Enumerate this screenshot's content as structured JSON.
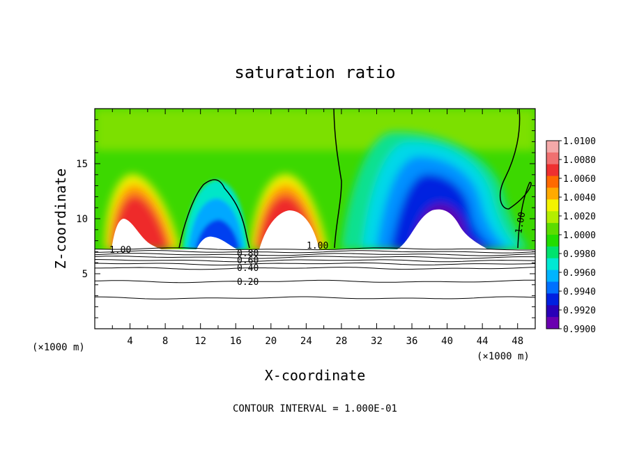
{
  "chart_data": {
    "type": "heatmap",
    "title": "saturation ratio",
    "xlabel": "X-coordinate",
    "ylabel": "Z-coordinate",
    "x_unit": "(×1000 m)",
    "footnote": "CONTOUR INTERVAL = 1.000E-01",
    "xlim": [
      0,
      50
    ],
    "ylim": [
      0,
      20
    ],
    "x_ticks": [
      4,
      8,
      12,
      16,
      20,
      24,
      28,
      32,
      36,
      40,
      44,
      48
    ],
    "y_ticks": [
      5,
      10,
      15
    ],
    "colorbar": {
      "min": 0.99,
      "max": 1.01,
      "labels": [
        "1.0100",
        "1.0080",
        "1.0060",
        "1.0040",
        "1.0020",
        "1.0000",
        "0.9980",
        "0.9960",
        "0.9940",
        "0.9920",
        "0.9900"
      ],
      "colors": [
        "#f4a9a9",
        "#f07070",
        "#ee3030",
        "#ff6a00",
        "#ffaa00",
        "#f3f300",
        "#b4ee00",
        "#5cdc00",
        "#22dd00",
        "#00e26e",
        "#00e8d4",
        "#00b4ff",
        "#0070ff",
        "#0020e0",
        "#2a00b8",
        "#6a00b0"
      ]
    },
    "contour_labels": [
      "1.00",
      "1.00",
      "1.00",
      "0.80",
      "0.60",
      "0.40",
      "0.20"
    ],
    "contour_levels_below_cloud": [
      7.25,
      7.0,
      6.75,
      6.5,
      6.2,
      5.9,
      5.5,
      4.3,
      2.8
    ],
    "features": [
      {
        "name": "supersaturated plume 1",
        "x_center": 6,
        "top_z": 13.5,
        "max_ratio": 1.01
      },
      {
        "name": "subsaturated plume 1",
        "x_center": 13.5,
        "top_z": 13.5,
        "min_ratio": 0.994
      },
      {
        "name": "supersaturated plume 2",
        "x_center": 21,
        "top_z": 13.5,
        "max_ratio": 1.01
      },
      {
        "name": "subsaturated region 2",
        "x_center": 38,
        "top_z": 16,
        "min_ratio": 0.99
      }
    ]
  }
}
